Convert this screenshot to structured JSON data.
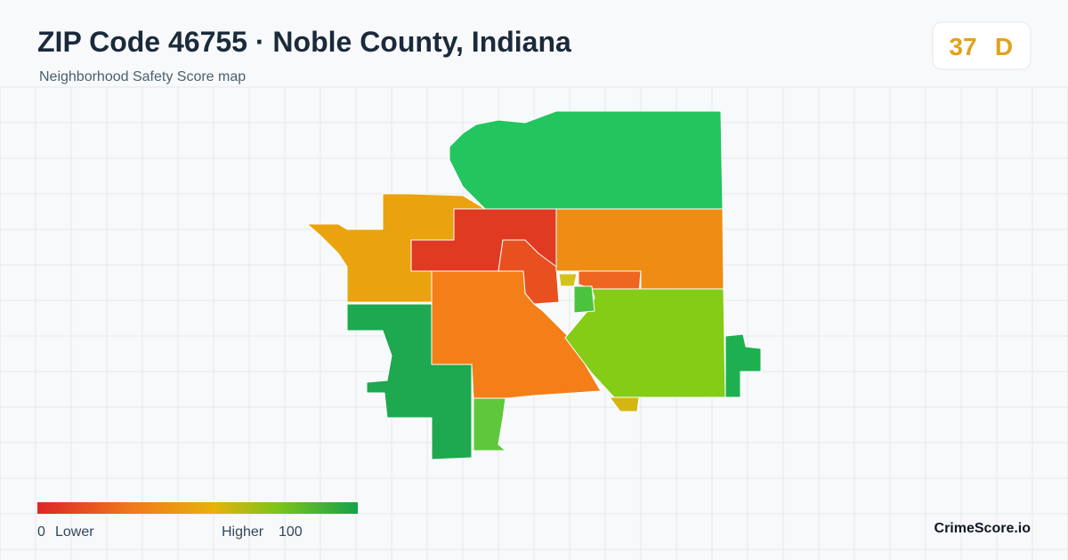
{
  "header": {
    "title": "ZIP Code 46755 · Noble County, Indiana",
    "subtitle": "Neighborhood Safety Score map"
  },
  "score": {
    "value": 37,
    "grade": "D"
  },
  "legend": {
    "min": 0,
    "min_label": "Lower",
    "max_label": "Higher",
    "max": 100
  },
  "brand": "CrimeScore.io"
}
